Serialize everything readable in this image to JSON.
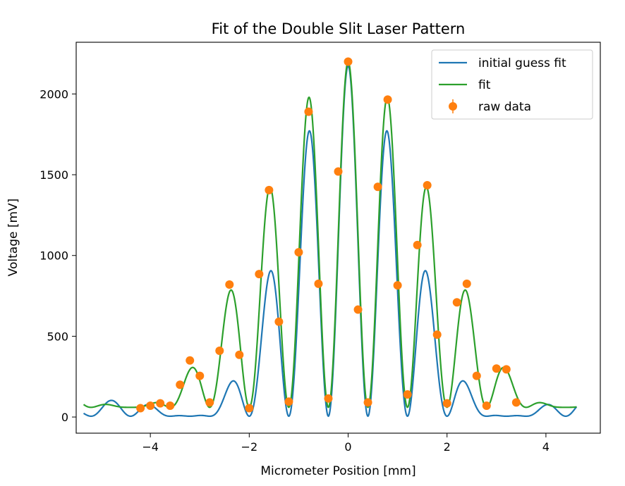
{
  "chart_data": {
    "type": "line",
    "title": "Fit of the Double Slit Laser Pattern",
    "xlabel": "Micrometer Position [mm]",
    "ylabel": "Voltage [mV]",
    "xlim": [
      -5.5,
      5.1
    ],
    "ylim": [
      -100,
      2320
    ],
    "xticks": [
      -4,
      -2,
      0,
      2,
      4
    ],
    "yticks": [
      0,
      500,
      1000,
      1500,
      2000
    ],
    "grid": false,
    "legend_position": "top-right",
    "series": [
      {
        "name": "initial guess fit",
        "kind": "line",
        "color": "#1f77b4",
        "model": {
          "I0": 2170,
          "envelope_first_zero_mm": 3.2,
          "fringe_spacing_mm": 0.8,
          "baseline": 5
        }
      },
      {
        "name": "fit",
        "kind": "line",
        "color": "#2ca02c",
        "model": {
          "I0": 2140,
          "envelope_first_zero_mm": 4.4,
          "fringe_spacing_mm": 0.8,
          "baseline": 60
        }
      },
      {
        "name": "raw data",
        "kind": "errorbar",
        "color": "#ff7f0e",
        "x": [
          -4.2,
          -4.0,
          -3.8,
          -3.6,
          -3.4,
          -3.2,
          -3.0,
          -2.8,
          -2.6,
          -2.4,
          -2.2,
          -2.0,
          -1.8,
          -1.6,
          -1.4,
          -1.2,
          -1.0,
          -0.8,
          -0.6,
          -0.4,
          -0.2,
          0.0,
          0.2,
          0.4,
          0.6,
          0.8,
          1.0,
          1.2,
          1.4,
          1.6,
          1.8,
          2.0,
          2.2,
          2.4,
          2.6,
          2.8,
          3.0,
          3.2,
          3.4
        ],
        "y": [
          55,
          70,
          85,
          70,
          200,
          350,
          255,
          90,
          410,
          820,
          385,
          55,
          885,
          1405,
          590,
          95,
          1020,
          1890,
          825,
          115,
          1520,
          2200,
          665,
          90,
          1425,
          1965,
          815,
          140,
          1065,
          1435,
          510,
          85,
          710,
          825,
          255,
          70,
          300,
          295,
          90
        ]
      }
    ]
  }
}
